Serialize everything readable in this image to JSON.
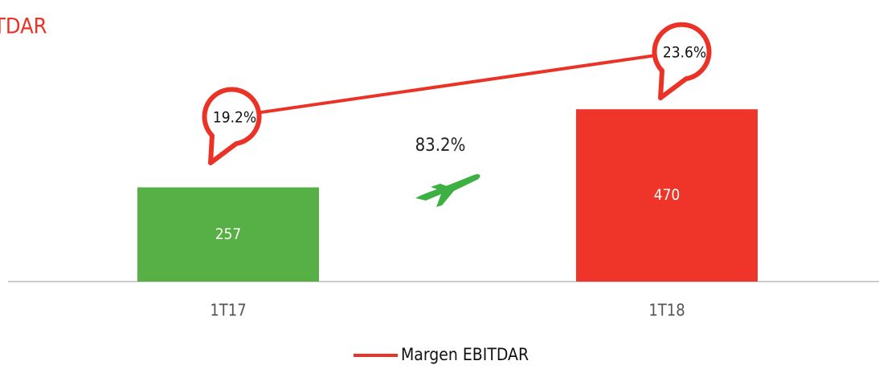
{
  "chart_data": {
    "type": "bar",
    "title": "TDAR",
    "categories": [
      "1T17",
      "1T18"
    ],
    "series": [
      {
        "name": "EBITDAR",
        "type": "bar",
        "colors": [
          "#57b045",
          "#ef3529"
        ],
        "values": [
          257,
          470
        ]
      },
      {
        "name": "Margen EBITDAR",
        "type": "line",
        "axis": "y2",
        "color": "#ea3326",
        "values": [
          19.2,
          23.6
        ],
        "value_labels": [
          "19.2%",
          "23.6%"
        ]
      }
    ],
    "annotation": "83.2%",
    "ylim": [
      0,
      500
    ],
    "y2lim": [
      8,
      26
    ],
    "legend": "bottom"
  }
}
